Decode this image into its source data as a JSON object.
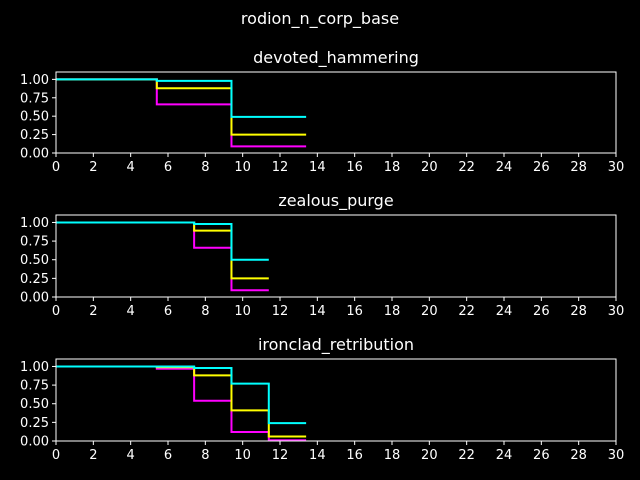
{
  "suptitle": "rodion_n_corp_base",
  "colors": {
    "background": "#000000",
    "foreground": "#ffffff",
    "magenta": "#ff00ff",
    "yellow": "#ffff00",
    "cyan": "#00ffff"
  },
  "chart_data": [
    {
      "type": "line",
      "step": true,
      "title": "devoted_hammering",
      "xlim": [
        0,
        30
      ],
      "ylim": [
        0,
        1.1
      ],
      "xticks": [
        "0",
        "2",
        "4",
        "6",
        "8",
        "10",
        "12",
        "14",
        "16",
        "18",
        "20",
        "22",
        "24",
        "26",
        "28",
        "30"
      ],
      "yticks": [
        "0.00",
        "0.25",
        "0.50",
        "0.75",
        "1.00"
      ],
      "grid": false,
      "series": [
        {
          "color": "#ff00ff",
          "x": [
            0,
            5.4,
            9.4,
            13.4
          ],
          "y": [
            1.0,
            0.66,
            0.09,
            0.09
          ]
        },
        {
          "color": "#ffff00",
          "x": [
            0,
            5.4,
            9.4,
            13.4
          ],
          "y": [
            1.0,
            0.88,
            0.25,
            0.25
          ]
        },
        {
          "color": "#00ffff",
          "x": [
            0,
            5.4,
            9.4,
            13.4
          ],
          "y": [
            1.0,
            0.98,
            0.49,
            0.49
          ]
        }
      ]
    },
    {
      "type": "line",
      "step": true,
      "title": "zealous_purge",
      "xlim": [
        0,
        30
      ],
      "ylim": [
        0,
        1.1
      ],
      "xticks": [
        "0",
        "2",
        "4",
        "6",
        "8",
        "10",
        "12",
        "14",
        "16",
        "18",
        "20",
        "22",
        "24",
        "26",
        "28",
        "30"
      ],
      "yticks": [
        "0.00",
        "0.25",
        "0.50",
        "0.75",
        "1.00"
      ],
      "grid": false,
      "series": [
        {
          "color": "#ff00ff",
          "x": [
            0,
            7.4,
            9.4,
            11.4
          ],
          "y": [
            1.0,
            0.66,
            0.09,
            0.09
          ]
        },
        {
          "color": "#ffff00",
          "x": [
            0,
            7.4,
            9.4,
            11.4
          ],
          "y": [
            1.0,
            0.89,
            0.25,
            0.25
          ]
        },
        {
          "color": "#00ffff",
          "x": [
            0,
            7.4,
            9.4,
            11.4
          ],
          "y": [
            1.0,
            0.98,
            0.5,
            0.5
          ]
        }
      ]
    },
    {
      "type": "line",
      "step": true,
      "title": "ironclad_retribution",
      "xlim": [
        0,
        30
      ],
      "ylim": [
        0,
        1.1
      ],
      "xticks": [
        "0",
        "2",
        "4",
        "6",
        "8",
        "10",
        "12",
        "14",
        "16",
        "18",
        "20",
        "22",
        "24",
        "26",
        "28",
        "30"
      ],
      "yticks": [
        "0.00",
        "0.25",
        "0.50",
        "0.75",
        "1.00"
      ],
      "grid": false,
      "series": [
        {
          "color": "#ff00ff",
          "x": [
            0,
            5.4,
            7.4,
            9.4,
            11.4,
            13.4
          ],
          "y": [
            1.0,
            0.97,
            0.54,
            0.12,
            0.01,
            0.01
          ]
        },
        {
          "color": "#ffff00",
          "x": [
            0,
            5.4,
            7.4,
            9.4,
            11.4,
            13.4
          ],
          "y": [
            1.0,
            0.99,
            0.88,
            0.41,
            0.06,
            0.06
          ]
        },
        {
          "color": "#00ffff",
          "x": [
            0,
            5.4,
            7.4,
            9.4,
            11.4,
            13.4
          ],
          "y": [
            1.0,
            1.0,
            0.98,
            0.77,
            0.24,
            0.24
          ]
        }
      ]
    }
  ]
}
